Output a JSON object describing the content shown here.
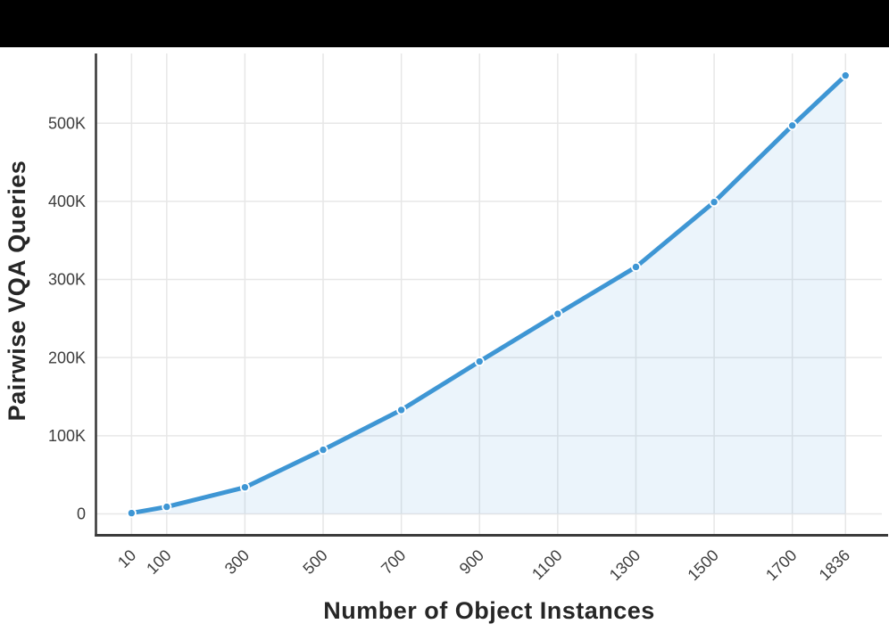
{
  "chart_data": {
    "type": "line",
    "title": "",
    "xlabel": "Number of Object Instances",
    "ylabel": "Pairwise VQA Queries",
    "x": [
      10,
      100,
      300,
      500,
      700,
      900,
      1100,
      1300,
      1500,
      1700,
      1836
    ],
    "y": [
      1000,
      9000,
      34000,
      82000,
      133000,
      195000,
      256000,
      316000,
      399000,
      497000,
      561000
    ],
    "x_tick_labels": [
      "10",
      "100",
      "300",
      "500",
      "700",
      "900",
      "1100",
      "1300",
      "1500",
      "1700",
      "1836"
    ],
    "y_ticks": [
      0,
      100000,
      200000,
      300000,
      400000,
      500000
    ],
    "y_tick_labels": [
      "0",
      "100K",
      "200K",
      "300K",
      "400K",
      "500K"
    ],
    "xlim": [
      -81,
      1929
    ],
    "ylim": [
      -27400,
      589200
    ],
    "grid": true,
    "legend": "none",
    "area_fill": true,
    "marker": "circle"
  },
  "style": {
    "line_color": "#3e96d4",
    "fill_color": "rgba(62,150,212,0.10)",
    "marker_color": "#3e96d4",
    "marker_edge_color": "#ffffff",
    "grid_color": "#e7e7e7",
    "spine_color": "#3b3b3b",
    "tick_color": "#3d3d3d",
    "axis_label_color": "#262626",
    "topbar_color": "#000000",
    "background": "#ffffff"
  }
}
